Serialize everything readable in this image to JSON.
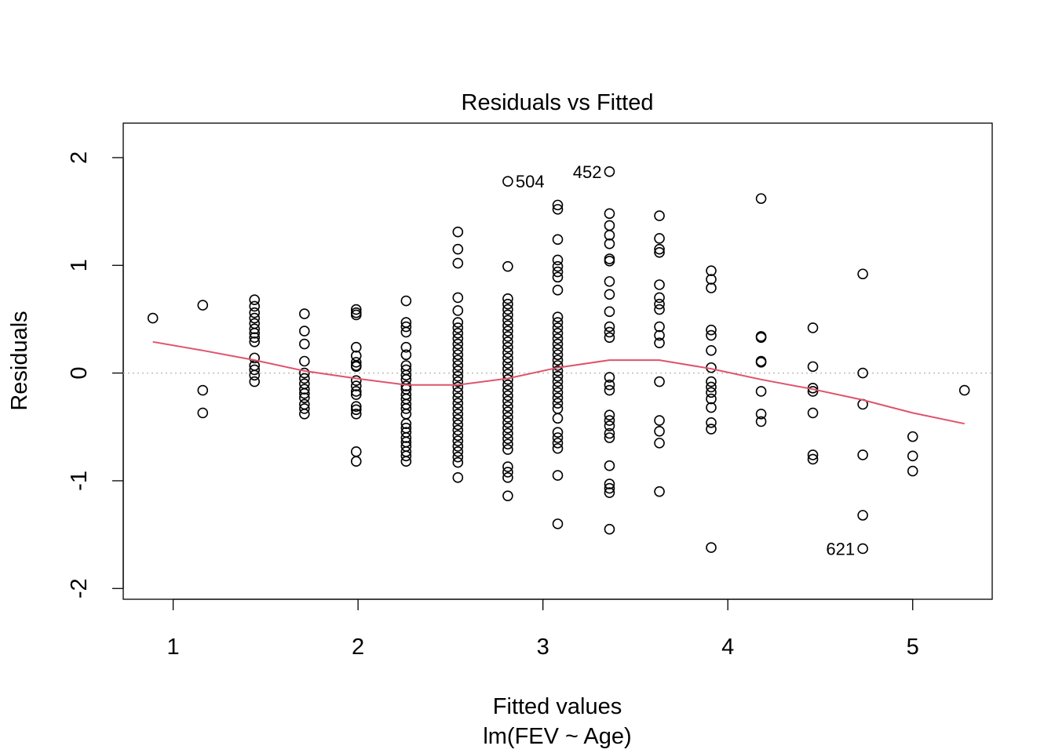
{
  "chart_data": {
    "type": "scatter",
    "title": "Residuals vs Fitted",
    "xlabel": "Fitted values",
    "subtitle": "lm(FEV ~ Age)",
    "ylabel": "Residuals",
    "xlim": [
      0.73,
      5.43
    ],
    "ylim": [
      -2.1,
      2.32
    ],
    "xticks": [
      1,
      2,
      3,
      4,
      5
    ],
    "yticks": [
      -2,
      -1,
      0,
      1,
      2
    ],
    "grid": false,
    "reference_line": {
      "y": 0,
      "style": "dotted",
      "color": "#bebebe"
    },
    "smooth_color": "#df536b",
    "point_color": "#000000",
    "smooth": [
      [
        0.89,
        0.29
      ],
      [
        1.16,
        0.21
      ],
      [
        1.44,
        0.12
      ],
      [
        1.71,
        0.02
      ],
      [
        1.99,
        -0.05
      ],
      [
        2.26,
        -0.11
      ],
      [
        2.54,
        -0.11
      ],
      [
        2.81,
        -0.05
      ],
      [
        3.08,
        0.05
      ],
      [
        3.36,
        0.12
      ],
      [
        3.63,
        0.12
      ],
      [
        3.91,
        0.04
      ],
      [
        4.18,
        -0.06
      ],
      [
        4.46,
        -0.15
      ],
      [
        4.73,
        -0.25
      ],
      [
        5.0,
        -0.37
      ],
      [
        5.28,
        -0.47
      ]
    ],
    "labeled_points": [
      {
        "label": "504",
        "x": 2.81,
        "y": 1.78,
        "side": "right"
      },
      {
        "label": "452",
        "x": 3.36,
        "y": 1.87,
        "side": "left"
      },
      {
        "label": "621",
        "x": 4.73,
        "y": -1.63,
        "side": "left"
      }
    ],
    "groups": [
      {
        "x": 0.89,
        "y": [
          0.51
        ]
      },
      {
        "x": 1.16,
        "y": [
          0.63,
          -0.16,
          -0.37
        ]
      },
      {
        "x": 1.44,
        "y": [
          0.68,
          0.62,
          0.56,
          0.51,
          0.46,
          0.41,
          0.37,
          0.33,
          0.29,
          0.14,
          0.07,
          0.03,
          -0.02,
          -0.08
        ]
      },
      {
        "x": 1.71,
        "y": [
          0.55,
          0.39,
          0.27,
          0.11,
          0.0,
          -0.05,
          -0.1,
          -0.15,
          -0.19,
          -0.23,
          -0.29,
          -0.33,
          -0.38
        ]
      },
      {
        "x": 1.99,
        "y": [
          0.59,
          0.56,
          0.54,
          0.24,
          0.16,
          0.1,
          0.07,
          0.06,
          -0.07,
          -0.12,
          -0.17,
          -0.2,
          -0.31,
          -0.34,
          -0.38,
          -0.73,
          -0.82
        ]
      },
      {
        "x": 2.26,
        "y": [
          0.67,
          0.47,
          0.43,
          0.38,
          0.24,
          0.17,
          0.07,
          0.03,
          -0.02,
          -0.06,
          -0.12,
          -0.15,
          -0.2,
          -0.24,
          -0.29,
          -0.33,
          -0.38,
          -0.47,
          -0.51,
          -0.55,
          -0.6,
          -0.64,
          -0.68,
          -0.73,
          -0.77,
          -0.82
        ]
      },
      {
        "x": 2.54,
        "y": [
          1.31,
          1.15,
          1.02,
          0.7,
          0.58,
          0.47,
          0.42,
          0.37,
          0.32,
          0.27,
          0.22,
          0.17,
          0.12,
          0.07,
          0.02,
          -0.03,
          -0.08,
          -0.13,
          -0.18,
          -0.23,
          -0.28,
          -0.33,
          -0.38,
          -0.43,
          -0.48,
          -0.53,
          -0.58,
          -0.63,
          -0.68,
          -0.73,
          -0.78,
          -0.83,
          -0.97
        ]
      },
      {
        "x": 2.81,
        "y": [
          0.99,
          0.69,
          0.64,
          0.59,
          0.54,
          0.49,
          0.44,
          0.39,
          0.34,
          0.29,
          0.24,
          0.19,
          0.14,
          0.09,
          0.04,
          -0.01,
          -0.06,
          -0.11,
          -0.16,
          -0.21,
          -0.26,
          -0.31,
          -0.36,
          -0.41,
          -0.46,
          -0.51,
          -0.56,
          -0.61,
          -0.66,
          -0.71,
          -0.87,
          -0.92,
          -0.97,
          -1.14
        ]
      },
      {
        "x": 3.08,
        "y": [
          1.56,
          1.52,
          1.24,
          1.05,
          0.99,
          0.94,
          0.89,
          0.77,
          0.52,
          0.47,
          0.42,
          0.37,
          0.32,
          0.27,
          0.22,
          0.17,
          0.12,
          0.07,
          0.02,
          -0.03,
          -0.08,
          -0.13,
          -0.18,
          -0.23,
          -0.28,
          -0.33,
          -0.42,
          -0.55,
          -0.6,
          -0.65,
          -0.7,
          -0.95,
          -1.4
        ]
      },
      {
        "x": 3.36,
        "y": [
          1.48,
          1.37,
          1.28,
          1.2,
          1.06,
          1.04,
          0.85,
          0.73,
          0.57,
          0.43,
          0.38,
          0.33,
          -0.04,
          -0.11,
          -0.16,
          -0.39,
          -0.44,
          -0.49,
          -0.56,
          -0.6,
          -0.86,
          -1.03,
          -1.07,
          -1.11,
          -1.45
        ]
      },
      {
        "x": 3.63,
        "y": [
          1.46,
          1.25,
          1.15,
          1.12,
          0.82,
          0.7,
          0.64,
          0.59,
          0.43,
          0.35,
          0.28,
          -0.08,
          -0.44,
          -0.54,
          -0.65,
          -1.1
        ]
      },
      {
        "x": 3.91,
        "y": [
          0.95,
          0.87,
          0.79,
          0.4,
          0.35,
          0.21,
          0.05,
          -0.08,
          -0.13,
          -0.18,
          -0.24,
          -0.32,
          -0.46,
          -0.52,
          -1.62
        ]
      },
      {
        "x": 4.18,
        "y": [
          1.62,
          0.34,
          0.33,
          0.11,
          0.1,
          -0.17,
          -0.38,
          -0.45
        ]
      },
      {
        "x": 4.46,
        "y": [
          0.42,
          0.06,
          -0.14,
          -0.17,
          -0.37,
          -0.76,
          -0.8
        ]
      },
      {
        "x": 4.73,
        "y": [
          0.92,
          0.0,
          -0.29,
          -0.76,
          -1.32
        ]
      },
      {
        "x": 5.0,
        "y": [
          -0.59,
          -0.77,
          -0.91
        ]
      },
      {
        "x": 5.28,
        "y": [
          -0.16
        ]
      }
    ]
  }
}
